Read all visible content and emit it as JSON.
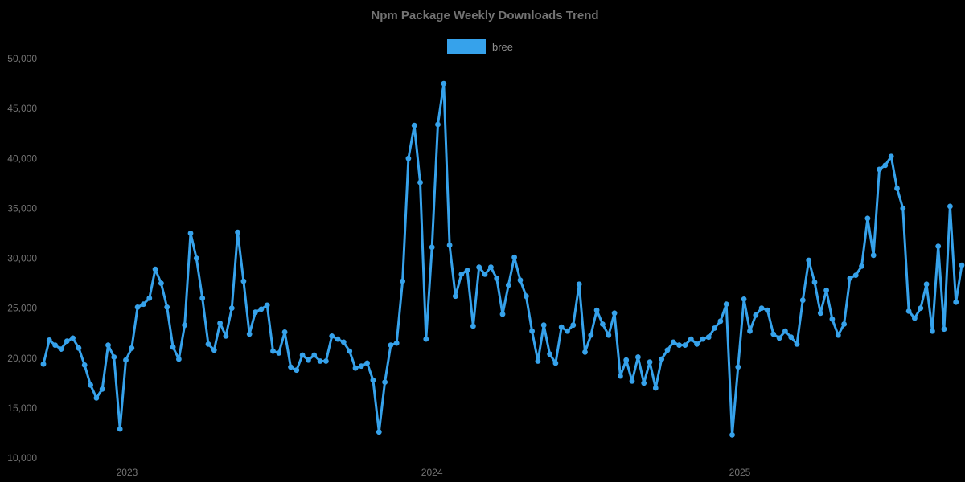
{
  "header": {
    "title": "Npm Package Weekly Downloads Trend"
  },
  "legend": {
    "label": "bree"
  },
  "colors": {
    "background": "#000000",
    "series_line": "#36A2EB",
    "title_text": "#737373",
    "tick_text": "#737373",
    "legend_text": "#909090"
  },
  "chart_data": {
    "type": "line",
    "title": "Npm Package Weekly Downloads Trend",
    "series_name": "bree",
    "xlabel": "",
    "ylabel": "",
    "ylim": [
      10000,
      50000
    ],
    "grid": false,
    "legend_position": "top-center",
    "marker": "circle",
    "y_ticks": [
      {
        "label": "10,000",
        "value": 10000
      },
      {
        "label": "15,000",
        "value": 15000
      },
      {
        "label": "20,000",
        "value": 20000
      },
      {
        "label": "25,000",
        "value": 25000
      },
      {
        "label": "30,000",
        "value": 30000
      },
      {
        "label": "35,000",
        "value": 35000
      },
      {
        "label": "40,000",
        "value": 40000
      },
      {
        "label": "45,000",
        "value": 45000
      },
      {
        "label": "50,000",
        "value": 50000
      }
    ],
    "x_ticks": [
      {
        "label": "2023",
        "week_index": 14.2
      },
      {
        "label": "2024",
        "week_index": 66.0
      },
      {
        "label": "2025",
        "week_index": 118.3
      }
    ],
    "x_unit": "week",
    "values": [
      19400,
      21800,
      21300,
      20900,
      21700,
      22000,
      21000,
      19300,
      17300,
      16000,
      16900,
      21300,
      20100,
      12900,
      19800,
      21000,
      25100,
      25400,
      26000,
      28900,
      27500,
      25100,
      21100,
      19900,
      23300,
      32500,
      30000,
      26000,
      21400,
      20800,
      23500,
      22200,
      25000,
      32600,
      27700,
      22400,
      24600,
      24900,
      25300,
      20700,
      20500,
      22600,
      19100,
      18800,
      20300,
      19800,
      20300,
      19700,
      19700,
      22200,
      21900,
      21600,
      20700,
      19000,
      19200,
      19500,
      17800,
      12600,
      17600,
      21300,
      21500,
      27700,
      40000,
      43300,
      37600,
      21900,
      31100,
      43400,
      47500,
      31300,
      26200,
      28400,
      28800,
      23200,
      29100,
      28400,
      29100,
      28000,
      24400,
      27300,
      30100,
      27800,
      26200,
      22700,
      19700,
      23300,
      20400,
      19500,
      23100,
      22700,
      23300,
      27400,
      20600,
      22300,
      24800,
      23400,
      22300,
      24500,
      18200,
      19800,
      17700,
      20100,
      17500,
      19600,
      17000,
      19900,
      20800,
      21600,
      21300,
      21300,
      21900,
      21400,
      21900,
      22100,
      23000,
      23700,
      25400,
      12300,
      19100,
      25900,
      22700,
      24300,
      25000,
      24800,
      22400,
      22000,
      22700,
      22100,
      21400,
      25800,
      29800,
      27600,
      24500,
      26800,
      23900,
      22300,
      23400,
      28000,
      28300,
      29200,
      34000,
      30300,
      38900,
      39300,
      40200,
      37000,
      35000,
      24700,
      24000,
      25000,
      27400,
      22700,
      31200,
      22900,
      35200,
      25600,
      29300
    ]
  }
}
